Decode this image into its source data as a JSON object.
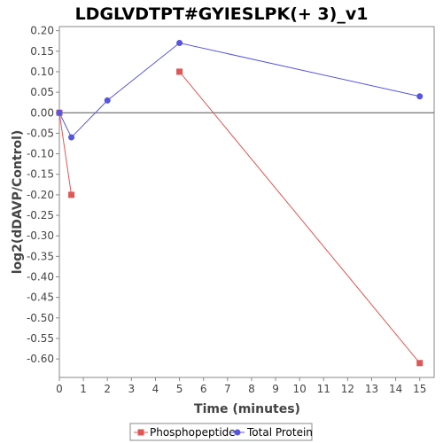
{
  "chart_data": {
    "type": "line",
    "title": "LDGLVDTPT#GYIESLPK(+ 3)_v1",
    "xlabel": "Time (minutes)",
    "ylabel": "log2(dDAVP/Control)",
    "xlim": [
      0,
      15.6
    ],
    "ylim": [
      -0.645,
      0.21
    ],
    "x_ticks": [
      0,
      1,
      2,
      3,
      4,
      5,
      6,
      7,
      8,
      9,
      10,
      11,
      12,
      13,
      14,
      15
    ],
    "y_ticks": [
      0.2,
      0.15,
      0.1,
      0.05,
      0.0,
      -0.05,
      -0.1,
      -0.15,
      -0.2,
      -0.25,
      -0.3,
      -0.35,
      -0.4,
      -0.45,
      -0.5,
      -0.55,
      -0.6
    ],
    "x_tick_labels": [
      "0",
      "1",
      "2",
      "3",
      "4",
      "5",
      "6",
      "7",
      "8",
      "9",
      "10",
      "11",
      "12",
      "13",
      "14",
      "15"
    ],
    "y_tick_labels": [
      "0.20",
      "0.15",
      "0.10",
      "0.05",
      "0.00",
      "-0.05",
      "-0.10",
      "-0.15",
      "-0.20",
      "-0.25",
      "-0.30",
      "-0.35",
      "-0.40",
      "-0.45",
      "-0.50",
      "-0.55",
      "-0.60"
    ],
    "zero_line": true,
    "grid": false,
    "legend_position": "bottom",
    "series": [
      {
        "name": "Phosphopeptide",
        "color": "#e05555",
        "marker": "square",
        "segments": [
          [
            {
              "x": 0,
              "y": 0.0
            },
            {
              "x": 0.5,
              "y": -0.2
            }
          ],
          [
            {
              "x": 5,
              "y": 0.1
            },
            {
              "x": 15,
              "y": -0.61
            }
          ]
        ]
      },
      {
        "name": "Total Protein",
        "color": "#5555e0",
        "marker": "circle",
        "segments": [
          [
            {
              "x": 0,
              "y": 0.0
            },
            {
              "x": 0.5,
              "y": -0.06
            },
            {
              "x": 2,
              "y": 0.03
            },
            {
              "x": 5,
              "y": 0.17
            },
            {
              "x": 15,
              "y": 0.04
            }
          ]
        ]
      }
    ]
  }
}
